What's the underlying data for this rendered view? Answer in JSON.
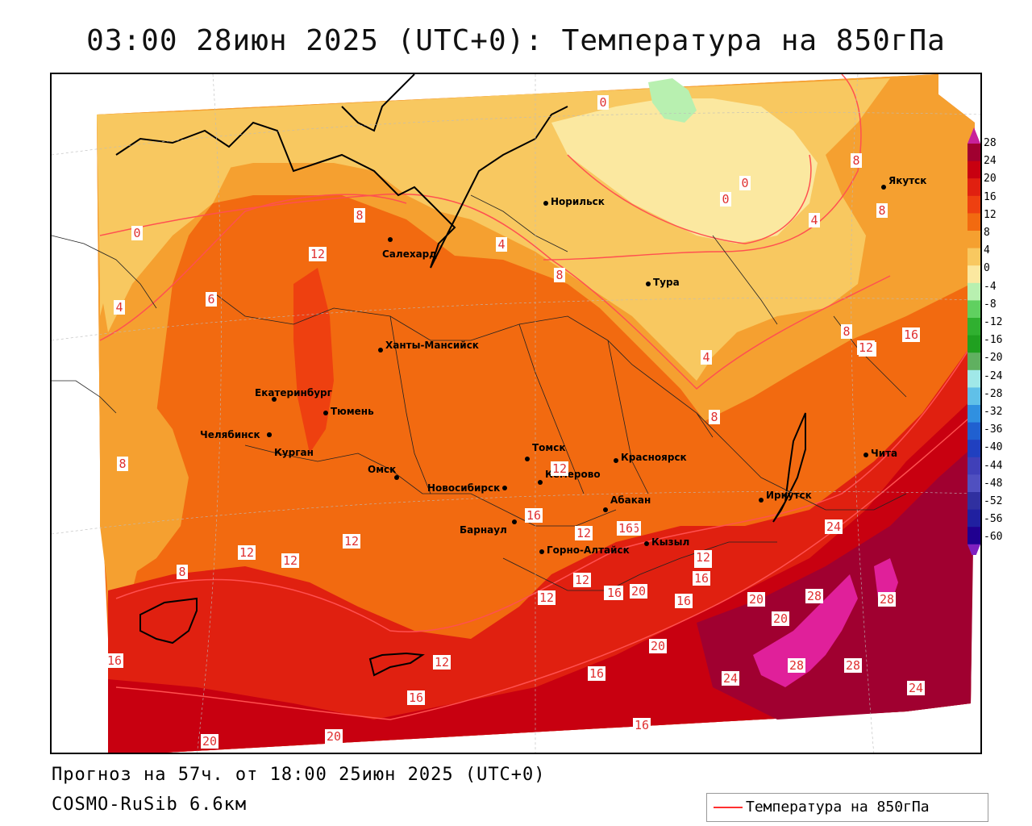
{
  "title": "03:00 28июн 2025 (UTC+0): Температура на 850гПа",
  "footer": {
    "forecast": "Прогноз на 57ч. от 18:00 25июн 2025 (UTC+0)",
    "model": "COSMO-RuSib 6.6км"
  },
  "legend": {
    "label": "Температура на 850гПа",
    "line_color": "#ff3030"
  },
  "colorbar": {
    "levels": [
      "28",
      "24",
      "20",
      "16",
      "12",
      "8",
      "4",
      "0",
      "-4",
      "-8",
      "-12",
      "-16",
      "-20",
      "-24",
      "-28",
      "-32",
      "-36",
      "-40",
      "-44",
      "-48",
      "-52",
      "-56",
      "-60"
    ],
    "colors": [
      "#a00030",
      "#c80010",
      "#e02010",
      "#ee4010",
      "#f26a10",
      "#f5a030",
      "#f8c860",
      "#fbe8a0",
      "#b8f0b0",
      "#60d060",
      "#30b030",
      "#20a020",
      "#60b060",
      "#a0e8e8",
      "#60c0e8",
      "#3090e0",
      "#2060d0",
      "#2040c0",
      "#4040b8",
      "#5050c0",
      "#3030a0",
      "#2020a0",
      "#200090"
    ]
  },
  "cities": [
    {
      "name": "Норильск"
    },
    {
      "name": "Якутск"
    },
    {
      "name": "Салехард"
    },
    {
      "name": "Тура"
    },
    {
      "name": "Ханты-Мансийск"
    },
    {
      "name": "Екатеринбург"
    },
    {
      "name": "Тюмень"
    },
    {
      "name": "Челябинск"
    },
    {
      "name": "Курган"
    },
    {
      "name": "Омск"
    },
    {
      "name": "Томск"
    },
    {
      "name": "Новосибирск"
    },
    {
      "name": "Кемерово"
    },
    {
      "name": "Красноярск"
    },
    {
      "name": "Абакан"
    },
    {
      "name": "Барнаул"
    },
    {
      "name": "Горно-Алтайск"
    },
    {
      "name": "Кызыл"
    },
    {
      "name": "Иркутск"
    },
    {
      "name": "Чита"
    }
  ],
  "contour_labels": [
    "0",
    "0",
    "0",
    "0",
    "8",
    "8",
    "4",
    "4",
    "8",
    "8",
    "12",
    "6",
    "4",
    "8",
    "4",
    "8",
    "12",
    "16",
    "8",
    "12",
    "12",
    "12",
    "12",
    "16",
    "12",
    "16",
    "12",
    "16",
    "12",
    "12",
    "16",
    "8",
    "16",
    "12",
    "16",
    "12",
    "24",
    "12",
    "16",
    "20",
    "16",
    "20",
    "28",
    "28",
    "20",
    "12",
    "16",
    "16",
    "20",
    "24",
    "28",
    "28",
    "24",
    "16",
    "20",
    "20",
    "16"
  ]
}
